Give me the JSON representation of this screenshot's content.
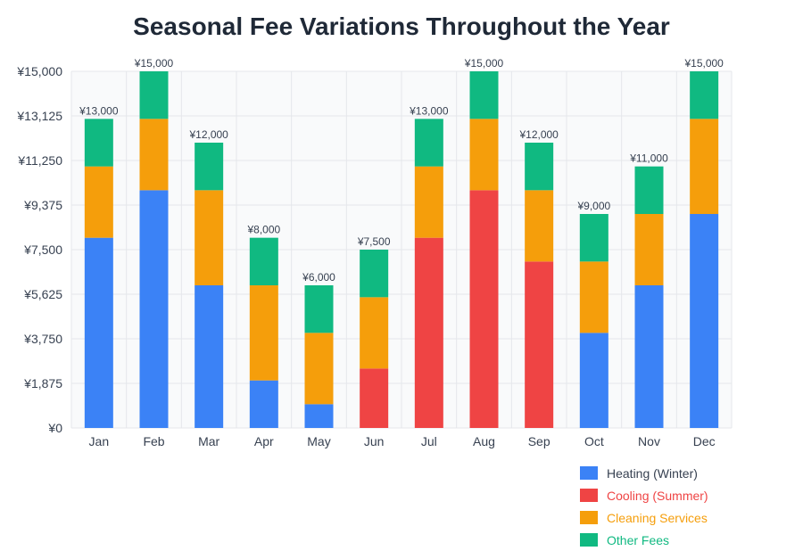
{
  "chart_data": {
    "type": "bar",
    "stacked": true,
    "title": "Seasonal Fee Variations Throughout the Year",
    "categories": [
      "Jan",
      "Feb",
      "Mar",
      "Apr",
      "May",
      "Jun",
      "Jul",
      "Aug",
      "Sep",
      "Oct",
      "Nov",
      "Dec"
    ],
    "series": [
      {
        "name": "Heating (Winter)",
        "color": "#3b82f6",
        "values": [
          8000,
          10000,
          6000,
          2000,
          1000,
          0,
          0,
          0,
          0,
          4000,
          6000,
          9000
        ]
      },
      {
        "name": "Cooling (Summer)",
        "color": "#ef4444",
        "values": [
          0,
          0,
          0,
          0,
          0,
          2500,
          8000,
          10000,
          7000,
          0,
          0,
          0
        ]
      },
      {
        "name": "Cleaning Services",
        "color": "#f59e0b",
        "values": [
          3000,
          3000,
          4000,
          4000,
          3000,
          3000,
          3000,
          3000,
          3000,
          3000,
          3000,
          4000
        ]
      },
      {
        "name": "Other Fees",
        "color": "#10b981",
        "values": [
          2000,
          2000,
          2000,
          2000,
          2000,
          2000,
          2000,
          2000,
          2000,
          2000,
          2000,
          2000
        ]
      }
    ],
    "totals": [
      "¥13,000",
      "¥15,000",
      "¥12,000",
      "¥8,000",
      "¥6,000",
      "¥7,500",
      "¥13,000",
      "¥15,000",
      "¥12,000",
      "¥9,000",
      "¥11,000",
      "¥15,000"
    ],
    "yticks": [
      "¥0",
      "¥1,875",
      "¥3,750",
      "¥5,625",
      "¥7,500",
      "¥9,375",
      "¥11,250",
      "¥13,125",
      "¥15,000"
    ],
    "ylim": [
      0,
      15000
    ],
    "grid": true,
    "legend_position": "bottom-right",
    "legend_label_colors": [
      "#374151",
      "#ef4444",
      "#f59e0b",
      "#10b981"
    ]
  }
}
